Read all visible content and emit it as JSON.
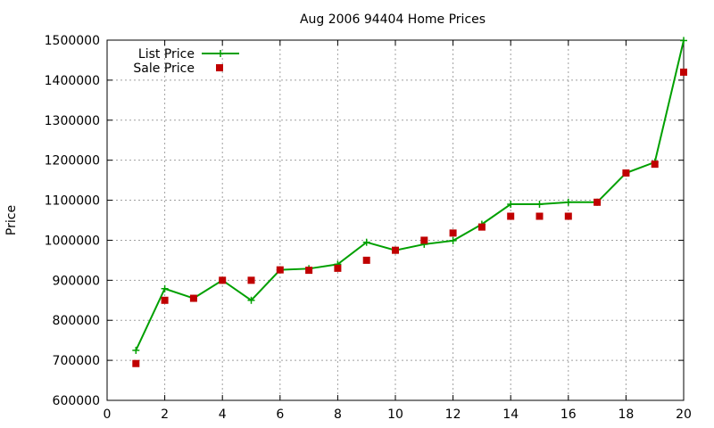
{
  "chart_data": {
    "type": "line",
    "title": "Aug 2006 94404 Home Prices",
    "xlabel": "",
    "ylabel": "Price",
    "xlim": [
      0,
      20
    ],
    "ylim": [
      600000,
      1500000
    ],
    "xticks": [
      0,
      2,
      4,
      6,
      8,
      10,
      12,
      14,
      16,
      18,
      20
    ],
    "yticks": [
      600000,
      700000,
      800000,
      900000,
      1000000,
      1100000,
      1200000,
      1300000,
      1400000,
      1500000
    ],
    "grid": true,
    "legend_position": "top-left",
    "x": [
      1,
      2,
      3,
      4,
      5,
      6,
      7,
      8,
      9,
      10,
      11,
      12,
      13,
      14,
      15,
      16,
      17,
      18,
      19,
      20
    ],
    "series": [
      {
        "name": "List Price",
        "style": "line-plus",
        "color": "#00a000",
        "values": [
          725000,
          879000,
          855000,
          900000,
          850000,
          926000,
          929000,
          940000,
          995000,
          975000,
          990000,
          999000,
          1040000,
          1090000,
          1090000,
          1095000,
          1095000,
          1168000,
          1195000,
          1499000
        ]
      },
      {
        "name": "Sale Price",
        "style": "square-points",
        "color": "#c00000",
        "values": [
          692000,
          850000,
          855000,
          900000,
          900000,
          926000,
          925000,
          930000,
          950000,
          975000,
          1000000,
          1018000,
          1033000,
          1060000,
          1060000,
          1060000,
          1095000,
          1168000,
          1190000,
          1420000
        ]
      }
    ]
  }
}
